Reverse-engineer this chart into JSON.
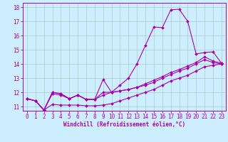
{
  "xlabel": "Windchill (Refroidissement éolien,°C)",
  "bg_color": "#cceeff",
  "line_color": "#aa00aa",
  "grid_color": "#aacccc",
  "xlim": [
    -0.5,
    23.5
  ],
  "ylim": [
    10.7,
    18.3
  ],
  "xticks": [
    0,
    1,
    2,
    3,
    4,
    5,
    6,
    7,
    8,
    9,
    10,
    11,
    12,
    13,
    14,
    15,
    16,
    17,
    18,
    19,
    20,
    21,
    22,
    23
  ],
  "yticks": [
    11,
    12,
    13,
    14,
    15,
    16,
    17,
    18
  ],
  "lines": [
    {
      "x": [
        0,
        1,
        2,
        3,
        4,
        5,
        6,
        7,
        8,
        9,
        10,
        11,
        12,
        13,
        14,
        15,
        16,
        17,
        18,
        19,
        20,
        21,
        22,
        23
      ],
      "y": [
        11.55,
        11.4,
        10.75,
        11.15,
        11.1,
        11.1,
        11.1,
        11.05,
        11.05,
        11.1,
        11.2,
        11.4,
        11.6,
        11.8,
        12.0,
        12.2,
        12.5,
        12.8,
        13.0,
        13.2,
        13.5,
        13.8,
        13.9,
        14.0
      ]
    },
    {
      "x": [
        0,
        1,
        2,
        3,
        4,
        5,
        6,
        7,
        8,
        9,
        10,
        11,
        12,
        13,
        14,
        15,
        16,
        17,
        18,
        19,
        20,
        21,
        22,
        23
      ],
      "y": [
        11.55,
        11.4,
        10.75,
        11.9,
        11.8,
        11.55,
        11.8,
        11.5,
        11.5,
        11.8,
        12.0,
        12.1,
        12.2,
        12.35,
        12.5,
        12.7,
        13.0,
        13.25,
        13.5,
        13.7,
        14.0,
        14.3,
        14.1,
        14.0
      ]
    },
    {
      "x": [
        0,
        1,
        2,
        3,
        4,
        5,
        6,
        7,
        8,
        9,
        10,
        11,
        12,
        13,
        14,
        15,
        16,
        17,
        18,
        19,
        20,
        21,
        22,
        23
      ],
      "y": [
        11.55,
        11.4,
        10.75,
        12.0,
        11.9,
        11.55,
        11.8,
        11.5,
        11.5,
        12.9,
        12.0,
        12.1,
        12.2,
        12.35,
        12.6,
        12.85,
        13.1,
        13.4,
        13.6,
        13.85,
        14.1,
        14.5,
        14.2,
        14.05
      ]
    },
    {
      "x": [
        0,
        1,
        2,
        3,
        4,
        5,
        6,
        7,
        8,
        9,
        10,
        11,
        12,
        13,
        14,
        15,
        16,
        17,
        18,
        19,
        20,
        21,
        22,
        23
      ],
      "y": [
        11.55,
        11.4,
        10.75,
        12.0,
        11.9,
        11.55,
        11.8,
        11.5,
        11.5,
        12.0,
        12.0,
        12.5,
        13.0,
        14.0,
        15.3,
        16.6,
        16.55,
        17.8,
        17.85,
        17.0,
        14.7,
        14.8,
        14.85,
        14.05
      ]
    }
  ]
}
